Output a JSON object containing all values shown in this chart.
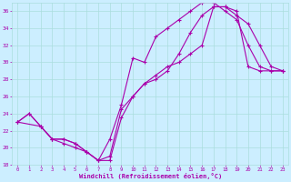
{
  "xlabel": "Windchill (Refroidissement éolien,°C)",
  "background_color": "#cceeff",
  "grid_color": "#aadddd",
  "line_color": "#aa00aa",
  "ylim": [
    18,
    37
  ],
  "xlim": [
    -0.5,
    23.5
  ],
  "yticks": [
    18,
    20,
    22,
    24,
    26,
    28,
    30,
    32,
    34,
    36
  ],
  "xticks": [
    0,
    1,
    2,
    3,
    4,
    5,
    6,
    7,
    8,
    9,
    10,
    11,
    12,
    13,
    14,
    15,
    16,
    17,
    18,
    19,
    20,
    21,
    22,
    23
  ],
  "line1_x": [
    0,
    1,
    2,
    3,
    4,
    5,
    6,
    7,
    8,
    9,
    10,
    11,
    12,
    13,
    14,
    15,
    16,
    17,
    18,
    19,
    20,
    21,
    22,
    23
  ],
  "line1_y": [
    23.0,
    24.0,
    22.5,
    21.0,
    21.0,
    20.5,
    19.5,
    18.5,
    19.0,
    24.5,
    26.0,
    27.5,
    28.5,
    29.5,
    30.0,
    31.0,
    32.0,
    36.5,
    36.5,
    36.0,
    29.5,
    29.0,
    29.0,
    29.0
  ],
  "line2_x": [
    0,
    1,
    2,
    3,
    4,
    5,
    6,
    7,
    8,
    9,
    10,
    11,
    12,
    13,
    14,
    15,
    16,
    17,
    18,
    19,
    20,
    21,
    22,
    23
  ],
  "line2_y": [
    23.0,
    24.0,
    22.5,
    21.0,
    21.0,
    20.5,
    19.5,
    18.5,
    21.0,
    25.0,
    30.5,
    30.0,
    33.0,
    34.0,
    35.0,
    36.0,
    37.0,
    37.0,
    36.0,
    35.0,
    32.0,
    29.5,
    29.0,
    29.0
  ],
  "line3_x": [
    0,
    2,
    3,
    4,
    5,
    6,
    7,
    8,
    9,
    10,
    11,
    12,
    13,
    14,
    15,
    16,
    17,
    18,
    19,
    20,
    21,
    22,
    23
  ],
  "line3_y": [
    23.0,
    22.5,
    21.0,
    20.5,
    20.0,
    19.5,
    18.5,
    18.5,
    23.5,
    26.0,
    27.5,
    28.0,
    29.0,
    31.0,
    33.5,
    35.5,
    36.5,
    36.5,
    35.5,
    34.5,
    32.0,
    29.5,
    29.0
  ]
}
